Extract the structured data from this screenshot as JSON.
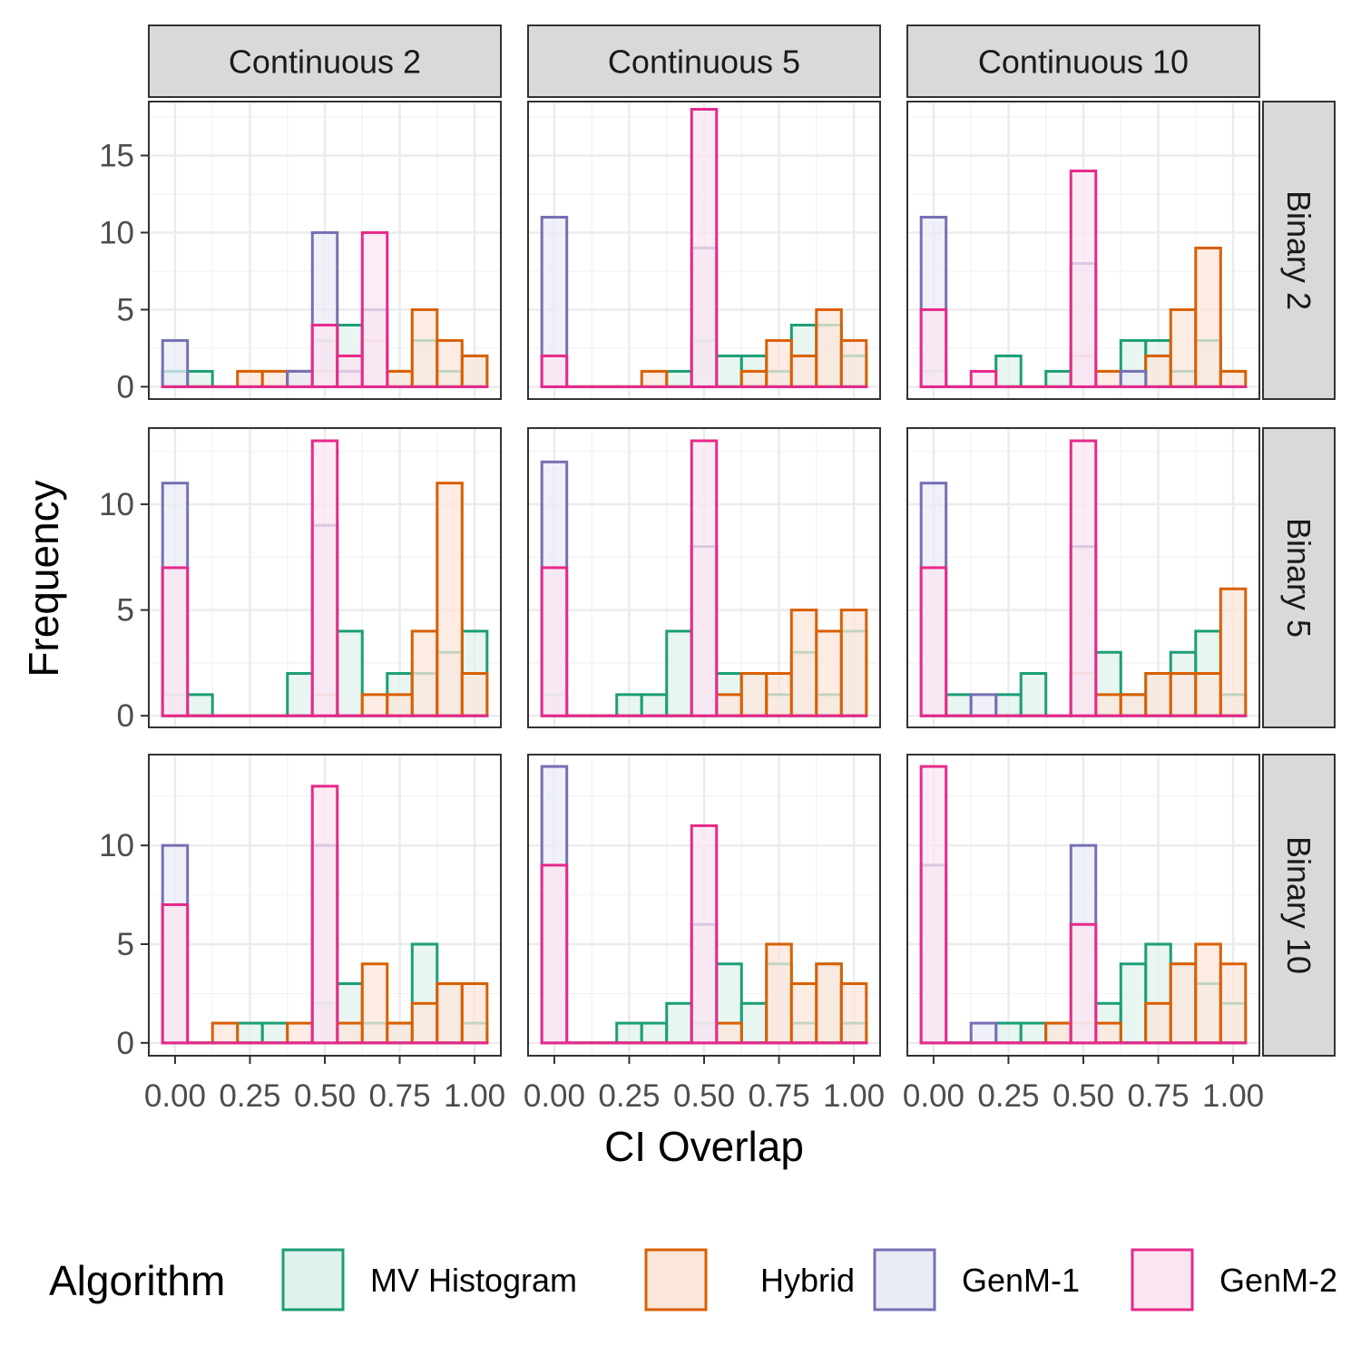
{
  "chart_data": {
    "type": "histogram",
    "xlabel": "CI Overlap",
    "ylabel": "Frequency",
    "bin_width": 0.0833,
    "bin_centers": [
      0.0,
      0.0833,
      0.1667,
      0.25,
      0.3333,
      0.4167,
      0.5,
      0.5833,
      0.6667,
      0.75,
      0.8333,
      0.9167,
      1.0
    ],
    "x_ticks": [
      "0.00",
      "0.25",
      "0.50",
      "0.75",
      "1.00"
    ],
    "x_tick_values": [
      0,
      0.25,
      0.5,
      0.75,
      1.0
    ],
    "columns": [
      "Continuous 2",
      "Continuous 5",
      "Continuous 10"
    ],
    "rows": [
      {
        "label": "Binary 2",
        "ylim": [
          -0.8,
          18.5
        ],
        "y_ticks": [
          "0",
          "5",
          "10",
          "15"
        ],
        "y_tick_values": [
          0,
          5,
          10,
          15
        ]
      },
      {
        "label": "Binary 5",
        "ylim": [
          -0.55,
          13.6
        ],
        "y_ticks": [
          "0",
          "5",
          "10"
        ],
        "y_tick_values": [
          0,
          5,
          10
        ]
      },
      {
        "label": "Binary 10",
        "ylim": [
          -0.65,
          14.6
        ],
        "y_ticks": [
          "0",
          "5",
          "10"
        ],
        "y_tick_values": [
          0,
          5,
          10
        ]
      }
    ],
    "legend": {
      "title": "Algorithm",
      "position": "bottom",
      "entries": [
        {
          "name": "MV Histogram",
          "color": "#1b9e77",
          "fill": "#e0f2ec"
        },
        {
          "name": "Hybrid",
          "color": "#d95f02",
          "fill": "#fce6d9"
        },
        {
          "name": "GenM-1",
          "color": "#7570b3",
          "fill": "#e9ebf5"
        },
        {
          "name": "GenM-2",
          "color": "#e7298a",
          "fill": "#fae6f2"
        }
      ]
    },
    "series_order": [
      "MV Histogram",
      "Hybrid",
      "GenM-1",
      "GenM-2"
    ],
    "panels": [
      {
        "row": 0,
        "col": 0,
        "series": {
          "MV Histogram": [
            1,
            1,
            0,
            0,
            0,
            1,
            3,
            4,
            3,
            1,
            3,
            1,
            2
          ],
          "Hybrid": [
            0,
            0,
            0,
            1,
            1,
            1,
            1,
            1,
            3,
            1,
            5,
            3,
            2
          ],
          "GenM-1": [
            3,
            0,
            0,
            0,
            0,
            1,
            10,
            1,
            5,
            0,
            0,
            0,
            0
          ],
          "GenM-2": [
            0,
            0,
            0,
            0,
            0,
            0,
            4,
            2,
            10,
            0,
            0,
            0,
            0
          ]
        }
      },
      {
        "row": 0,
        "col": 1,
        "series": {
          "MV Histogram": [
            0,
            0,
            0,
            0,
            0,
            1,
            3,
            2,
            2,
            1,
            4,
            4,
            2
          ],
          "Hybrid": [
            0,
            0,
            0,
            0,
            1,
            0,
            0,
            0,
            1,
            3,
            2,
            5,
            3
          ],
          "GenM-1": [
            11,
            0,
            0,
            0,
            0,
            0,
            9,
            0,
            0,
            0,
            0,
            0,
            0
          ],
          "GenM-2": [
            2,
            0,
            0,
            0,
            0,
            0,
            18,
            0,
            0,
            0,
            0,
            0,
            0
          ]
        }
      },
      {
        "row": 0,
        "col": 2,
        "series": {
          "MV Histogram": [
            1,
            0,
            0,
            2,
            0,
            1,
            0,
            0,
            3,
            3,
            1,
            3,
            0
          ],
          "Hybrid": [
            0,
            0,
            0,
            0,
            0,
            0,
            2,
            1,
            0,
            2,
            5,
            9,
            1
          ],
          "GenM-1": [
            11,
            0,
            0,
            0,
            0,
            0,
            8,
            0,
            1,
            0,
            0,
            0,
            0
          ],
          "GenM-2": [
            5,
            0,
            1,
            0,
            0,
            0,
            14,
            0,
            0,
            0,
            0,
            0,
            0
          ]
        }
      },
      {
        "row": 1,
        "col": 0,
        "series": {
          "MV Histogram": [
            1,
            1,
            0,
            0,
            0,
            2,
            1,
            4,
            0,
            2,
            2,
            3,
            4
          ],
          "Hybrid": [
            0,
            0,
            0,
            0,
            0,
            0,
            1,
            0,
            1,
            1,
            4,
            11,
            2
          ],
          "GenM-1": [
            11,
            0,
            0,
            0,
            0,
            0,
            9,
            0,
            0,
            0,
            0,
            0,
            0
          ],
          "GenM-2": [
            7,
            0,
            0,
            0,
            0,
            0,
            13,
            0,
            0,
            0,
            0,
            0,
            0
          ]
        }
      },
      {
        "row": 1,
        "col": 1,
        "series": {
          "MV Histogram": [
            1,
            0,
            0,
            1,
            1,
            4,
            0,
            2,
            2,
            1,
            3,
            1,
            4
          ],
          "Hybrid": [
            0,
            0,
            0,
            0,
            0,
            0,
            0,
            1,
            2,
            2,
            5,
            4,
            5
          ],
          "GenM-1": [
            12,
            0,
            0,
            0,
            0,
            0,
            8,
            0,
            0,
            0,
            0,
            0,
            0
          ],
          "GenM-2": [
            7,
            0,
            0,
            0,
            0,
            0,
            13,
            0,
            0,
            0,
            0,
            0,
            0
          ]
        }
      },
      {
        "row": 1,
        "col": 2,
        "series": {
          "MV Histogram": [
            0,
            1,
            0,
            1,
            2,
            0,
            2,
            3,
            1,
            2,
            3,
            4,
            1
          ],
          "Hybrid": [
            0,
            0,
            0,
            0,
            0,
            0,
            2,
            1,
            1,
            2,
            2,
            2,
            6
          ],
          "GenM-1": [
            11,
            0,
            1,
            0,
            0,
            0,
            8,
            0,
            0,
            0,
            0,
            0,
            0
          ],
          "GenM-2": [
            7,
            0,
            0,
            0,
            0,
            0,
            13,
            0,
            0,
            0,
            0,
            0,
            0
          ]
        }
      },
      {
        "row": 2,
        "col": 0,
        "series": {
          "MV Histogram": [
            0,
            0,
            0,
            1,
            1,
            0,
            2,
            3,
            1,
            1,
            5,
            3,
            1
          ],
          "Hybrid": [
            0,
            0,
            1,
            0,
            0,
            1,
            0,
            1,
            4,
            1,
            2,
            3,
            3
          ],
          "GenM-1": [
            10,
            0,
            0,
            0,
            0,
            0,
            10,
            0,
            0,
            0,
            0,
            0,
            0
          ],
          "GenM-2": [
            7,
            0,
            0,
            0,
            0,
            0,
            13,
            0,
            0,
            0,
            0,
            0,
            0
          ]
        }
      },
      {
        "row": 2,
        "col": 1,
        "series": {
          "MV Histogram": [
            0,
            0,
            0,
            1,
            1,
            2,
            1,
            4,
            2,
            4,
            1,
            4,
            1
          ],
          "Hybrid": [
            0,
            0,
            0,
            0,
            0,
            0,
            0,
            1,
            0,
            5,
            3,
            4,
            3
          ],
          "GenM-1": [
            14,
            0,
            0,
            0,
            0,
            0,
            6,
            0,
            0,
            0,
            0,
            0,
            0
          ],
          "GenM-2": [
            9,
            0,
            0,
            0,
            0,
            0,
            11,
            0,
            0,
            0,
            0,
            0,
            0
          ]
        }
      },
      {
        "row": 2,
        "col": 2,
        "series": {
          "MV Histogram": [
            0,
            0,
            0,
            1,
            1,
            1,
            0,
            2,
            4,
            5,
            4,
            3,
            2
          ],
          "Hybrid": [
            0,
            0,
            0,
            0,
            0,
            1,
            1,
            1,
            0,
            2,
            4,
            5,
            4
          ],
          "GenM-1": [
            9,
            0,
            1,
            0,
            0,
            0,
            10,
            0,
            0,
            0,
            0,
            0,
            0
          ],
          "GenM-2": [
            14,
            0,
            0,
            0,
            0,
            0,
            6,
            0,
            0,
            0,
            0,
            0,
            0
          ]
        }
      }
    ]
  }
}
